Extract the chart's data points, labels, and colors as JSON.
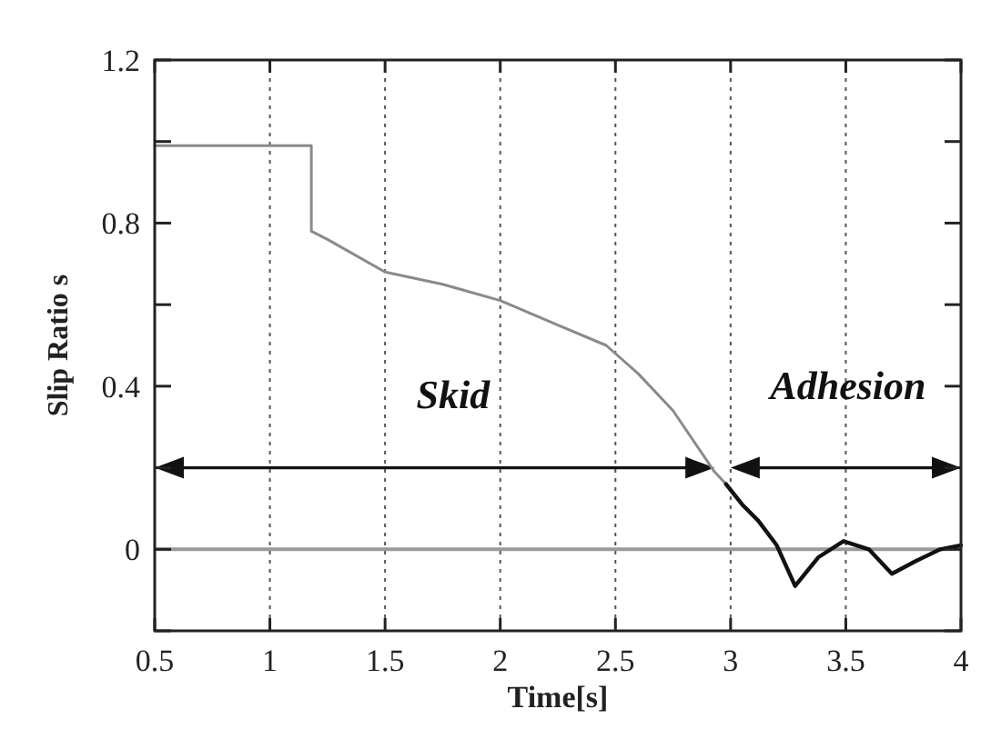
{
  "chart_data": {
    "type": "line",
    "xlabel": "Time[s]",
    "ylabel": "Slip Ratio s",
    "xlim": [
      0.5,
      4
    ],
    "xticks": [
      0.5,
      1,
      1.5,
      2,
      2.5,
      3,
      3.5,
      4
    ],
    "ylim": [
      -0.2,
      1.2
    ],
    "yticks": [
      {
        "value": -0.2,
        "label": null
      },
      0,
      {
        "value": 0.2,
        "label": null
      },
      0.4,
      {
        "value": 0.6,
        "label": null
      },
      0.8,
      {
        "value": 1.0,
        "label": null
      },
      1.2
    ],
    "grid": "x",
    "ref_lines": [
      {
        "axis": "y",
        "value": 0,
        "color": "#9a9a9a"
      }
    ],
    "annotations": [
      "Skid",
      "Adhesion"
    ],
    "series": [
      {
        "color": "#8a8a8a",
        "x": [
          0.5,
          1.18,
          1.18,
          1.25,
          1.5,
          1.75,
          2.0,
          2.25,
          2.46,
          2.6,
          2.75,
          2.93,
          2.98
        ],
        "values": [
          0.99,
          0.99,
          0.78,
          0.76,
          0.68,
          0.65,
          0.61,
          0.55,
          0.5,
          0.43,
          0.34,
          0.19,
          0.16
        ]
      },
      {
        "color": "#111111",
        "x": [
          2.98,
          3.05,
          3.12,
          3.2,
          3.28,
          3.38,
          3.49,
          3.6,
          3.7,
          3.8,
          3.91,
          4.0
        ],
        "values": [
          0.16,
          0.11,
          0.07,
          0.01,
          -0.09,
          -0.02,
          0.02,
          0.0,
          -0.06,
          -0.03,
          0.0,
          0.01
        ]
      }
    ]
  }
}
